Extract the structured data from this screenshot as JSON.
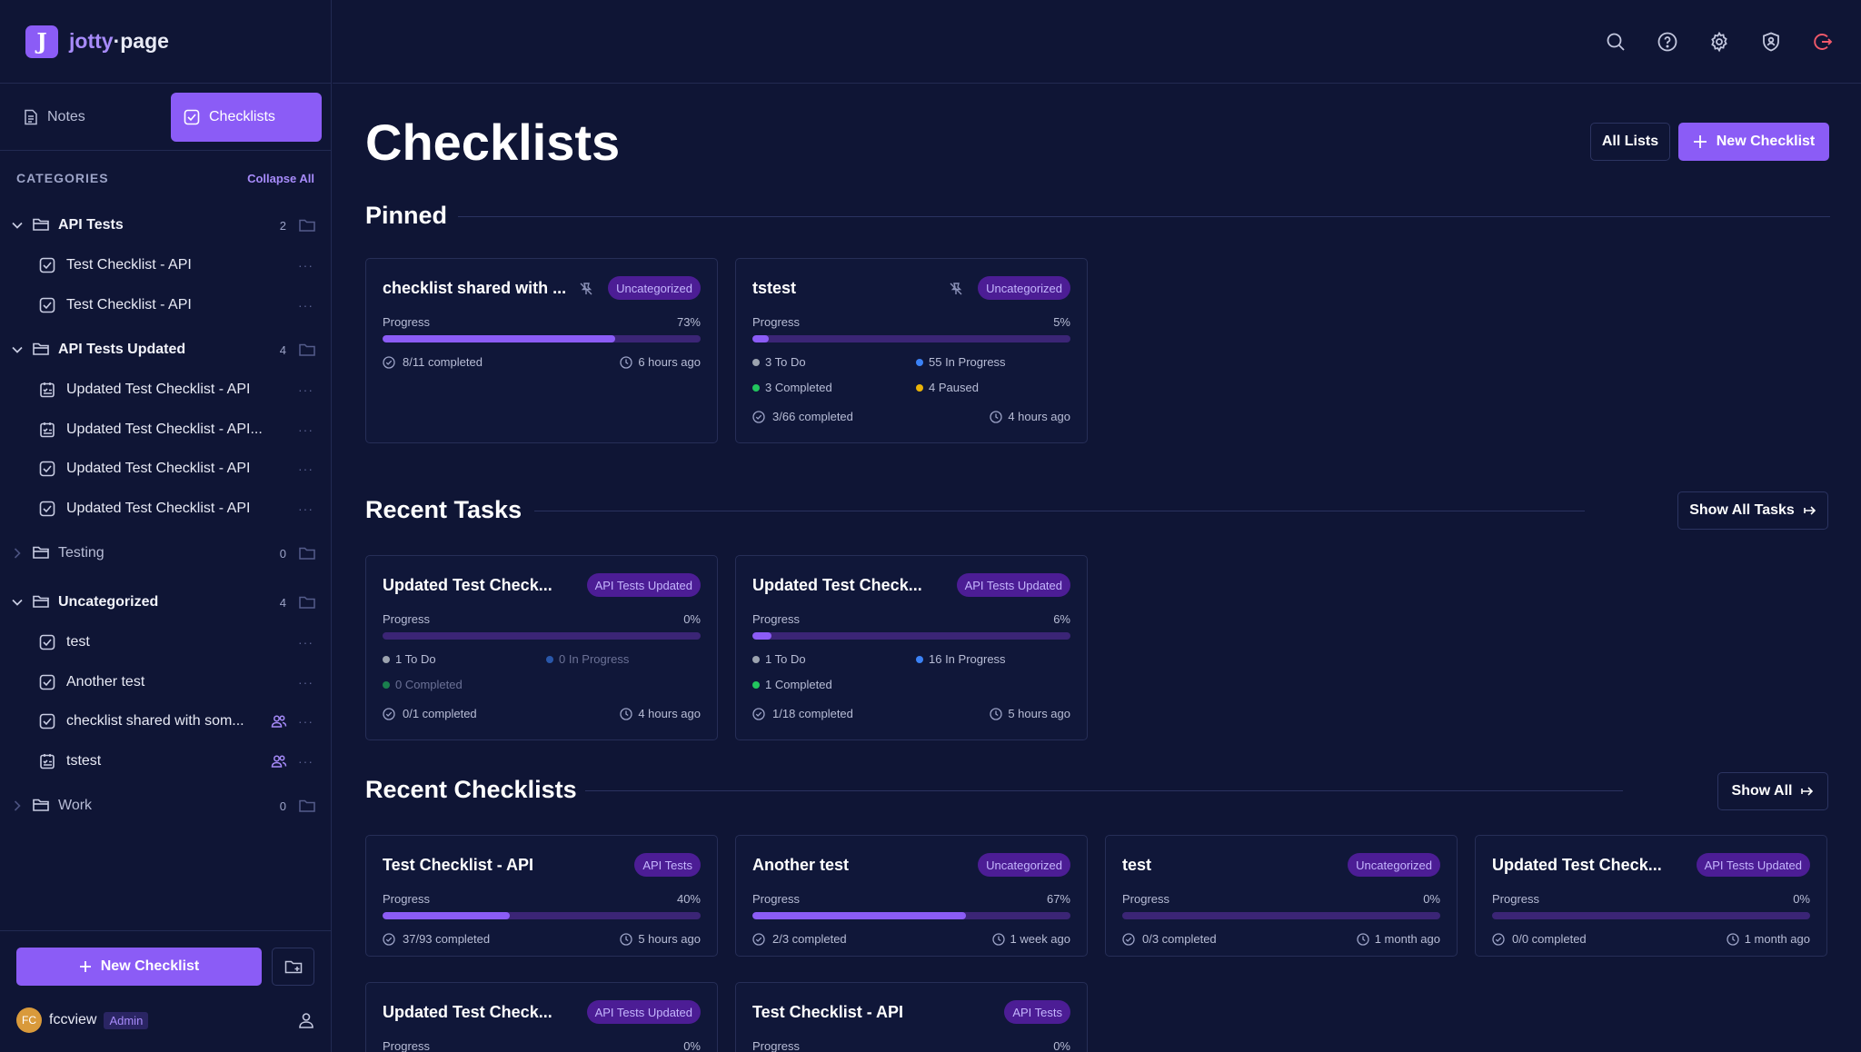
{
  "app": {
    "logo_letter": "J",
    "logo_left": "jotty",
    "logo_right": "·page"
  },
  "colors": {
    "accent": "#8b5cf6",
    "background": "#0f1535",
    "badge_bg": "#4c1d95",
    "todo": "#9ca3af",
    "in_progress": "#3b82f6",
    "completed": "#22c55e",
    "paused": "#eab308"
  },
  "nav": {
    "notes": "Notes",
    "checklists": "Checklists"
  },
  "sidebar": {
    "categories_label": "CATEGORIES",
    "collapse_all": "Collapse All",
    "groups": [
      {
        "name": "API Tests",
        "count": "2",
        "expanded": true,
        "items": [
          {
            "name": "Test Checklist - API",
            "icon": "checkbox-icon"
          },
          {
            "name": "Test Checklist - API",
            "icon": "checkbox-icon"
          }
        ]
      },
      {
        "name": "API Tests Updated",
        "count": "4",
        "expanded": true,
        "items": [
          {
            "name": "Updated Test Checklist - API",
            "icon": "task-list-icon"
          },
          {
            "name": "Updated Test Checklist - API...",
            "icon": "task-list-icon"
          },
          {
            "name": "Updated Test Checklist - API",
            "icon": "checkbox-icon"
          },
          {
            "name": "Updated Test Checklist - API",
            "icon": "checkbox-icon"
          }
        ]
      },
      {
        "name": "Testing",
        "count": "0",
        "expanded": false,
        "items": []
      },
      {
        "name": "Uncategorized",
        "count": "4",
        "expanded": true,
        "items": [
          {
            "name": "test",
            "icon": "checkbox-icon"
          },
          {
            "name": "Another test",
            "icon": "checkbox-icon"
          },
          {
            "name": "checklist shared with som...",
            "icon": "checkbox-icon",
            "shared": true
          },
          {
            "name": "tstest",
            "icon": "task-list-icon",
            "shared": true
          }
        ]
      },
      {
        "name": "Work",
        "count": "0",
        "expanded": false,
        "items": []
      }
    ],
    "new_checklist": "New Checklist",
    "user": {
      "initials": "FC",
      "name": "fccview",
      "role": "Admin"
    }
  },
  "main": {
    "title": "Checklists",
    "all_lists": "All Lists",
    "new_checklist": "New Checklist",
    "progress_label": "Progress",
    "pinned": {
      "title": "Pinned",
      "cards": [
        {
          "title": "checklist shared with ...",
          "badge": "Uncategorized",
          "percent": "73%",
          "progress": 0.73,
          "completed": "8/11 completed",
          "time": "6 hours ago"
        },
        {
          "title": "tstest",
          "badge": "Uncategorized",
          "percent": "5%",
          "progress": 0.05,
          "stats": {
            "todo": "3 To Do",
            "in_progress": "55 In Progress",
            "completed": "3 Completed",
            "paused": "4 Paused"
          },
          "completed": "3/66 completed",
          "time": "4 hours ago"
        }
      ]
    },
    "recent_tasks": {
      "title": "Recent Tasks",
      "show_all": "Show All Tasks",
      "cards": [
        {
          "title": "Updated Test Check...",
          "badge": "API Tests Updated",
          "percent": "0%",
          "progress": 0,
          "stats": {
            "todo": "1 To Do",
            "in_progress": "0 In Progress",
            "completed": "0 Completed"
          },
          "completed": "0/1 completed",
          "time": "4 hours ago"
        },
        {
          "title": "Updated Test Check...",
          "badge": "API Tests Updated",
          "percent": "6%",
          "progress": 0.06,
          "stats": {
            "todo": "1 To Do",
            "in_progress": "16 In Progress",
            "completed": "1 Completed"
          },
          "completed": "1/18 completed",
          "time": "5 hours ago"
        }
      ]
    },
    "recent_checklists": {
      "title": "Recent Checklists",
      "show_all": "Show All",
      "cards": [
        {
          "title": "Test Checklist - API",
          "badge": "API Tests",
          "percent": "40%",
          "progress": 0.4,
          "completed": "37/93 completed",
          "time": "5 hours ago"
        },
        {
          "title": "Another test",
          "badge": "Uncategorized",
          "percent": "67%",
          "progress": 0.67,
          "completed": "2/3 completed",
          "time": "1 week ago"
        },
        {
          "title": "test",
          "badge": "Uncategorized",
          "percent": "0%",
          "progress": 0,
          "completed": "0/3 completed",
          "time": "1 month ago"
        },
        {
          "title": "Updated Test Check...",
          "badge": "API Tests Updated",
          "percent": "0%",
          "progress": 0,
          "completed": "0/0 completed",
          "time": "1 month ago"
        },
        {
          "title": "Updated Test Check...",
          "badge": "API Tests Updated",
          "percent": "0%",
          "progress": 0
        },
        {
          "title": "Test Checklist - API",
          "badge": "API Tests",
          "percent": "0%",
          "progress": 0
        }
      ]
    }
  }
}
